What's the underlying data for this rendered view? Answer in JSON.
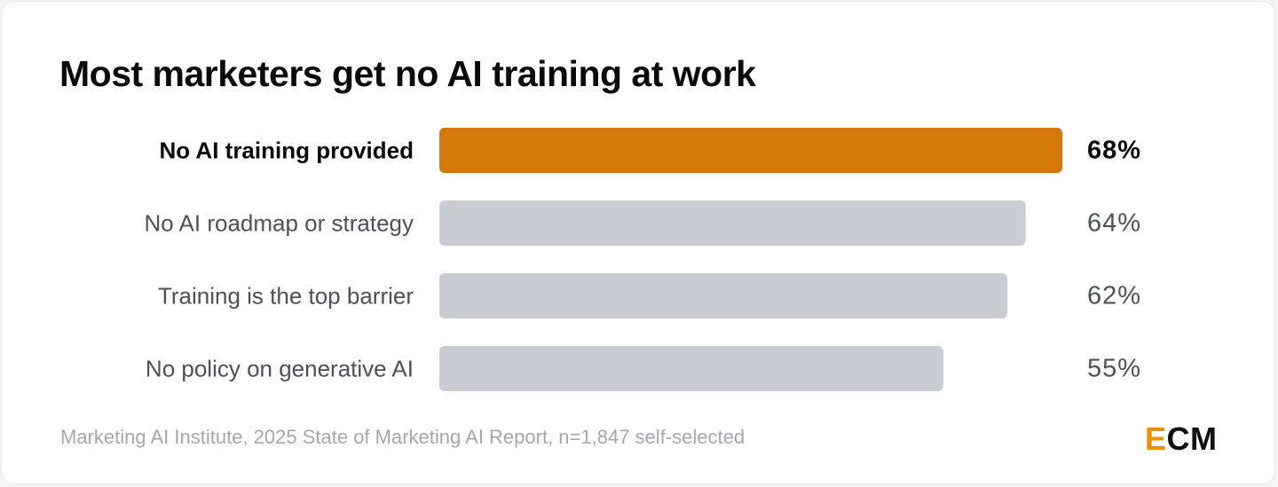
{
  "title": "Most marketers get no AI training at work",
  "source": "Marketing AI Institute, 2025 State of Marketing AI Report, n=1,847 self-selected",
  "logo": {
    "e": "E",
    "cm": "CM"
  },
  "colors": {
    "highlight": "#d4780b",
    "muted": "#c9ccd2",
    "highlight_text": "#0b0b0b",
    "muted_text": "#4d525a"
  },
  "chart_data": {
    "type": "bar",
    "orientation": "horizontal",
    "title": "Most marketers get no AI training at work",
    "categories": [
      "No AI training provided",
      "No AI roadmap or strategy",
      "Training is the top barrier",
      "No policy on generative AI"
    ],
    "values": [
      68,
      64,
      62,
      55
    ],
    "value_labels": [
      "68%",
      "64%",
      "62%",
      "55%"
    ],
    "highlighted": [
      true,
      false,
      false,
      false
    ],
    "unit": "%",
    "xlim": [
      0,
      68
    ],
    "grid": false,
    "legend": "none"
  }
}
